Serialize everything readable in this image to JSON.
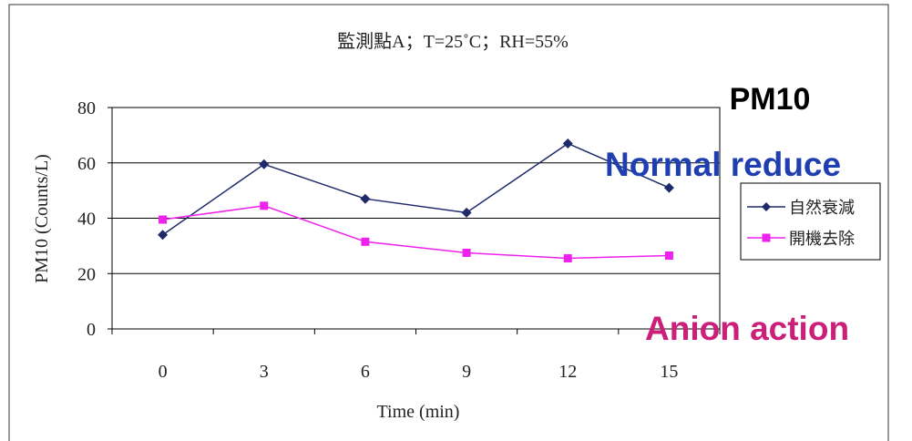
{
  "chart_data": {
    "type": "line",
    "title": "監測點A；T=25˚C；RH=55%",
    "xlabel": "Time (min)",
    "ylabel": "PM10 (Counts/L)",
    "categories": [
      "0",
      "3",
      "6",
      "9",
      "12",
      "15"
    ],
    "ylim": [
      0,
      80
    ],
    "yticks": [
      "0",
      "20",
      "40",
      "60",
      "80"
    ],
    "grid": true,
    "legend_position": "right",
    "series": [
      {
        "name": "自然衰減",
        "values": [
          34,
          59.5,
          47,
          42,
          67,
          51
        ],
        "color": "#1f2a6b",
        "marker": "diamond"
      },
      {
        "name": "開機去除",
        "values": [
          39.5,
          44.5,
          31.5,
          27.5,
          25.5,
          26.5
        ],
        "color": "#ee22ee",
        "marker": "square"
      }
    ],
    "annotations": {
      "heading": "PM10",
      "normal": "Normal reduce",
      "anion": "Anion action"
    },
    "annotation_colors": {
      "heading": "#000000",
      "normal": "#1f3fb0",
      "anion": "#cc1f7a"
    }
  }
}
